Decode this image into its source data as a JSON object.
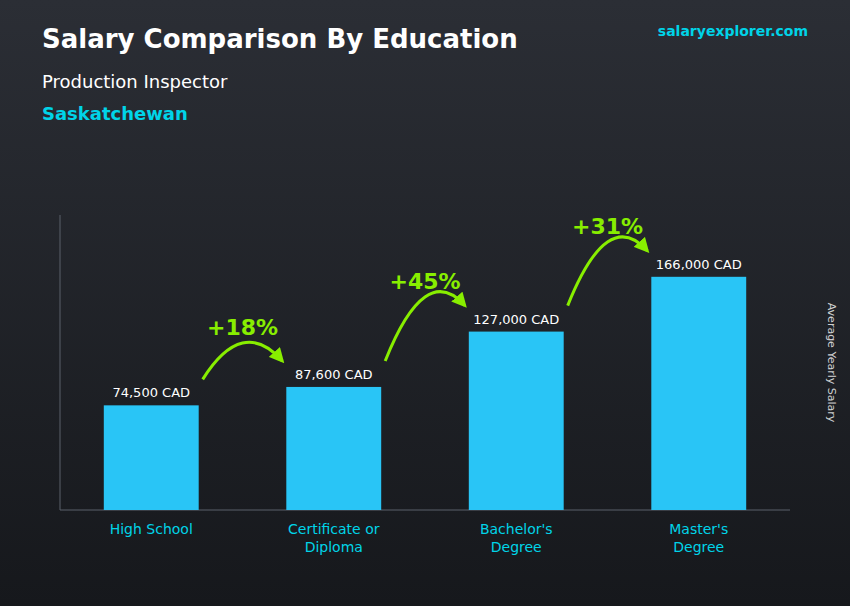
{
  "chart_data": {
    "type": "bar",
    "title": "Salary Comparison By Education",
    "subtitle": [
      "Production Inspector",
      "Saskatchewan"
    ],
    "source": "salaryexplorer.com",
    "ylabel": "Average Yearly Salary",
    "categories": [
      "High School",
      "Certificate or\nDiploma",
      "Bachelor's\nDegree",
      "Master's\nDegree"
    ],
    "values": [
      74500,
      87600,
      127000,
      166000
    ],
    "value_labels": [
      "74,500 CAD",
      "87,600 CAD",
      "127,000 CAD",
      "166,000 CAD"
    ],
    "data_labels": true,
    "annotations": [
      "+18%",
      "+45%",
      "+31%"
    ],
    "color": "#29C5F6",
    "ylim": [
      0,
      210000
    ],
    "tick_labels": "x",
    "grid": false
  }
}
